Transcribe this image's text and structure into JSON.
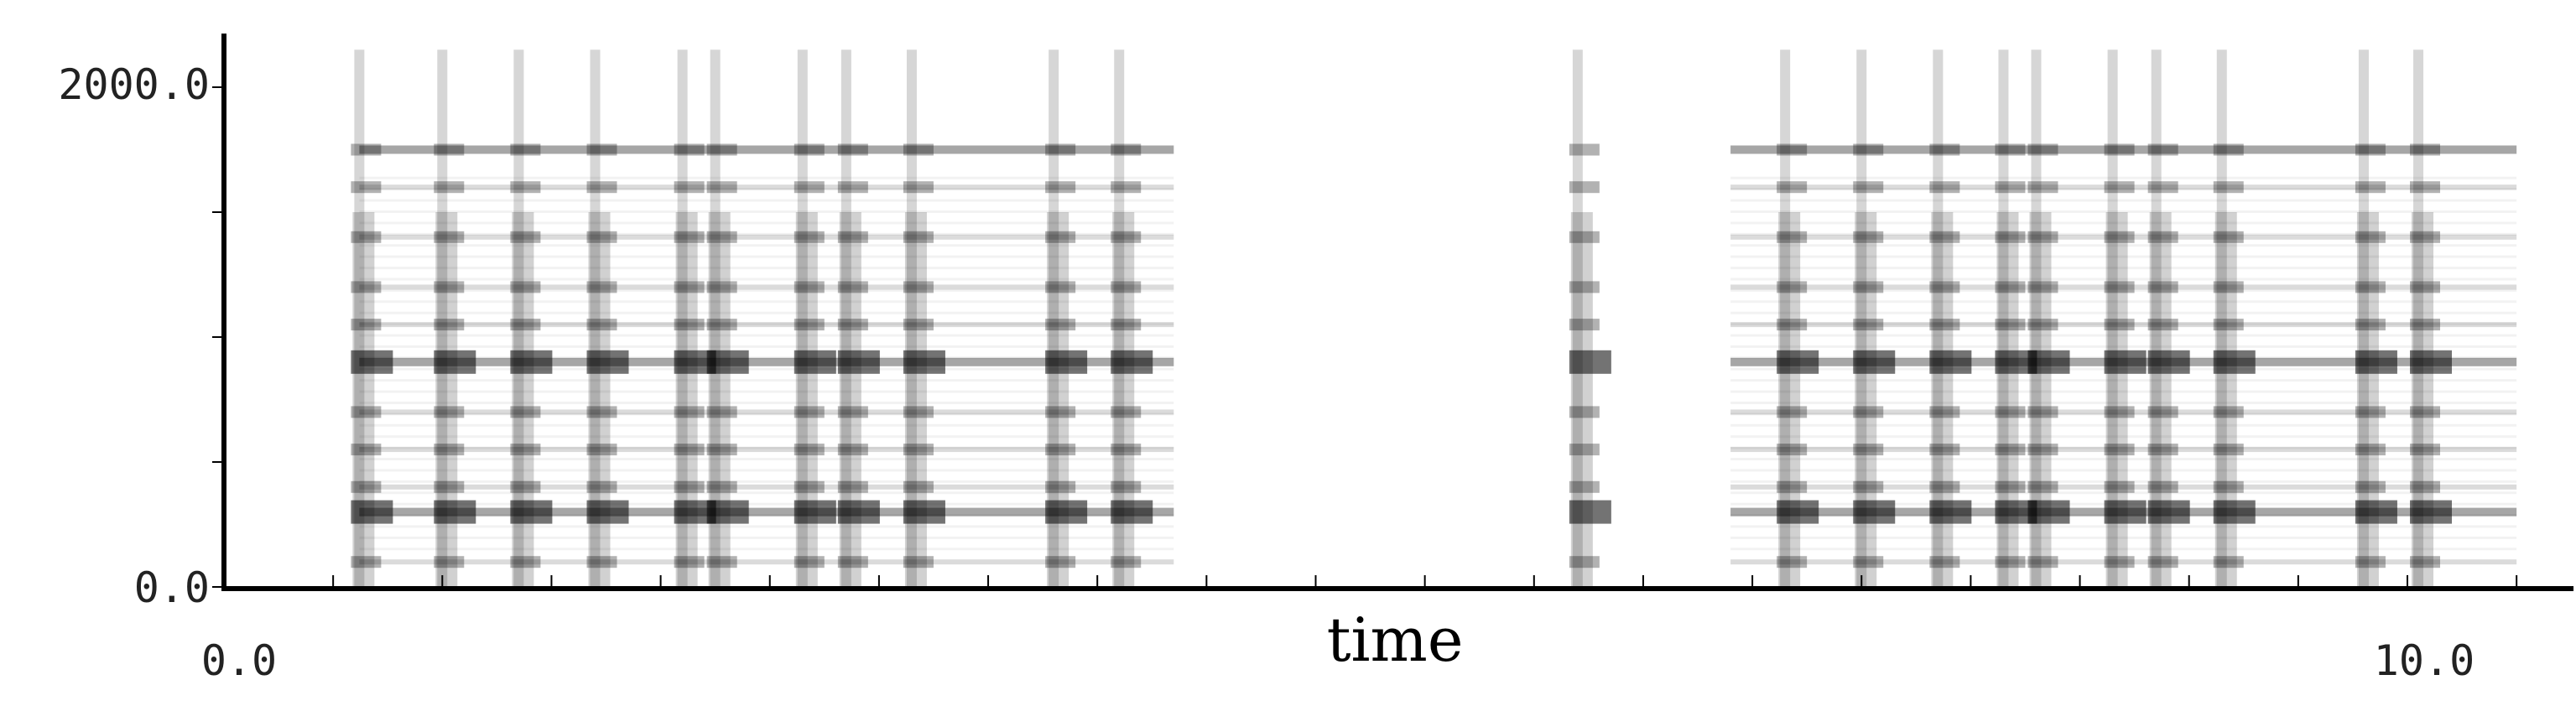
{
  "chart_data": {
    "type": "heatmap",
    "title": "",
    "xlabel": "time",
    "ylabel": "",
    "xlim": [
      0.0,
      10.85
    ],
    "ylim": [
      0.0,
      2200.0
    ],
    "x_ticks": [
      {
        "value": 0.0,
        "label": "0.0"
      },
      {
        "value": 10.0,
        "label": "10.0"
      }
    ],
    "y_ticks": [
      {
        "value": 0.0,
        "label": "0.0"
      },
      {
        "value": 2000.0,
        "label": "2000.0"
      }
    ],
    "x_minor_tick_step": 0.5,
    "y_minor_tick_step": 500.0,
    "colormap": [
      "#ffffff",
      "#000000"
    ],
    "onsets": [
      0.62,
      1.0,
      1.35,
      1.7,
      2.1,
      2.25,
      2.65,
      2.85,
      3.15,
      3.8,
      4.1,
      6.2,
      7.15,
      7.5,
      7.85,
      8.15,
      8.3,
      8.65,
      8.85,
      9.15,
      9.8,
      10.05
    ],
    "sustained_regions": [
      {
        "start": 0.62,
        "end": 4.35
      },
      {
        "start": 6.9,
        "end": 10.5
      }
    ],
    "harmonic_bands_hz": [
      100,
      300,
      400,
      550,
      700,
      900,
      1050,
      1200,
      1400,
      1600,
      1750
    ],
    "colors": {
      "axis": "#000000",
      "ink": "#000000"
    }
  }
}
